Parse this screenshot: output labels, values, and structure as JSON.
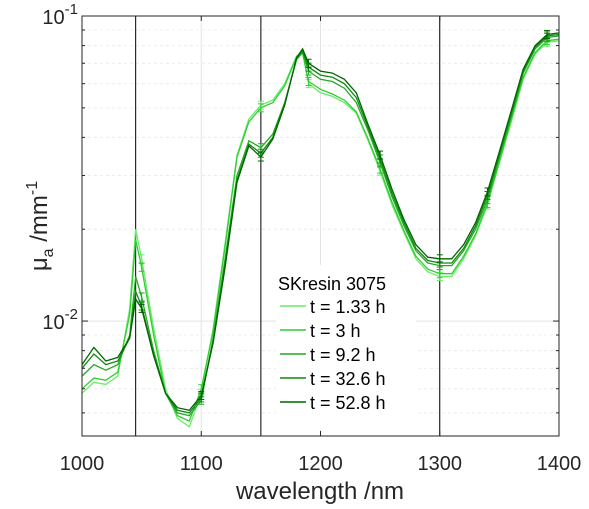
{
  "chart_data": {
    "type": "line",
    "xlabel": "wavelength /nm",
    "ylabel_main": "μ",
    "ylabel_sub": "a",
    "ylabel_unit": "/mm",
    "ylabel_exp": "-1",
    "xlim": [
      1000,
      1400
    ],
    "ylim": [
      0.0042,
      0.1
    ],
    "yscale": "log",
    "grid": true,
    "x_ticks": [
      1000,
      1100,
      1200,
      1300,
      1400
    ],
    "x_tick_labels": [
      "1000",
      "1100",
      "1200",
      "1300",
      "1400"
    ],
    "y_tick_labels": [
      {
        "value": 0.01,
        "base": "10",
        "exp": "-2"
      },
      {
        "value": 0.1,
        "base": "10",
        "exp": "-1"
      }
    ],
    "vlines": [
      1045,
      1150,
      1300
    ],
    "legend_title": "SKresin 3075",
    "legend_position": "inside-lower-center",
    "x": [
      1000,
      1010,
      1020,
      1030,
      1040,
      1045,
      1050,
      1060,
      1070,
      1080,
      1090,
      1100,
      1110,
      1120,
      1130,
      1140,
      1150,
      1160,
      1170,
      1180,
      1185,
      1190,
      1200,
      1210,
      1220,
      1230,
      1240,
      1250,
      1260,
      1270,
      1280,
      1290,
      1300,
      1310,
      1320,
      1330,
      1340,
      1350,
      1360,
      1370,
      1380,
      1390,
      1400
    ],
    "series": [
      {
        "name": "t = 1.33 h",
        "color": "#66ee66",
        "values": [
          0.0058,
          0.0063,
          0.0062,
          0.0066,
          0.011,
          0.02,
          0.016,
          0.0095,
          0.006,
          0.0048,
          0.0045,
          0.0058,
          0.0095,
          0.018,
          0.035,
          0.046,
          0.051,
          0.053,
          0.06,
          0.074,
          0.076,
          0.06,
          0.056,
          0.0545,
          0.052,
          0.048,
          0.039,
          0.031,
          0.024,
          0.0195,
          0.016,
          0.0145,
          0.014,
          0.014,
          0.016,
          0.019,
          0.024,
          0.033,
          0.045,
          0.062,
          0.075,
          0.082,
          0.083
        ]
      },
      {
        "name": "t = 3 h",
        "color": "#33cc33",
        "values": [
          0.006,
          0.0065,
          0.0064,
          0.0068,
          0.0105,
          0.0185,
          0.015,
          0.009,
          0.0058,
          0.0049,
          0.0047,
          0.006,
          0.0093,
          0.0175,
          0.0345,
          0.045,
          0.05,
          0.052,
          0.059,
          0.0735,
          0.0755,
          0.061,
          0.0575,
          0.0555,
          0.053,
          0.0485,
          0.0395,
          0.0315,
          0.0245,
          0.0198,
          0.0163,
          0.0148,
          0.0143,
          0.0143,
          0.0163,
          0.0193,
          0.0243,
          0.0335,
          0.046,
          0.063,
          0.076,
          0.083,
          0.084
        ]
      },
      {
        "name": "t = 9.2 h",
        "color": "#22aa22",
        "values": [
          0.0066,
          0.0072,
          0.0069,
          0.0072,
          0.009,
          0.014,
          0.012,
          0.008,
          0.0058,
          0.005,
          0.0049,
          0.0055,
          0.0088,
          0.016,
          0.03,
          0.039,
          0.037,
          0.041,
          0.052,
          0.072,
          0.076,
          0.066,
          0.062,
          0.061,
          0.058,
          0.052,
          0.042,
          0.033,
          0.0255,
          0.0205,
          0.017,
          0.0155,
          0.0152,
          0.0152,
          0.017,
          0.02,
          0.025,
          0.0345,
          0.047,
          0.065,
          0.078,
          0.085,
          0.086
        ]
      },
      {
        "name": "t = 32.6 h",
        "color": "#118811",
        "values": [
          0.007,
          0.0078,
          0.0072,
          0.0074,
          0.0088,
          0.0125,
          0.0112,
          0.0078,
          0.0058,
          0.0051,
          0.005,
          0.0056,
          0.0086,
          0.0155,
          0.029,
          0.038,
          0.0355,
          0.04,
          0.0515,
          0.0725,
          0.077,
          0.068,
          0.064,
          0.063,
          0.06,
          0.054,
          0.043,
          0.034,
          0.0262,
          0.021,
          0.0173,
          0.0158,
          0.0155,
          0.0155,
          0.0173,
          0.0205,
          0.0258,
          0.0352,
          0.048,
          0.066,
          0.079,
          0.086,
          0.087
        ]
      },
      {
        "name": "t = 52.8 h",
        "color": "#006600",
        "values": [
          0.0072,
          0.0082,
          0.0074,
          0.0076,
          0.0088,
          0.0118,
          0.011,
          0.0077,
          0.0058,
          0.0052,
          0.0051,
          0.0057,
          0.0085,
          0.015,
          0.0285,
          0.0375,
          0.0345,
          0.0395,
          0.051,
          0.073,
          0.078,
          0.07,
          0.066,
          0.065,
          0.062,
          0.056,
          0.044,
          0.035,
          0.027,
          0.0215,
          0.0178,
          0.0162,
          0.016,
          0.016,
          0.0178,
          0.021,
          0.0265,
          0.036,
          0.049,
          0.067,
          0.08,
          0.087,
          0.088
        ]
      }
    ]
  }
}
